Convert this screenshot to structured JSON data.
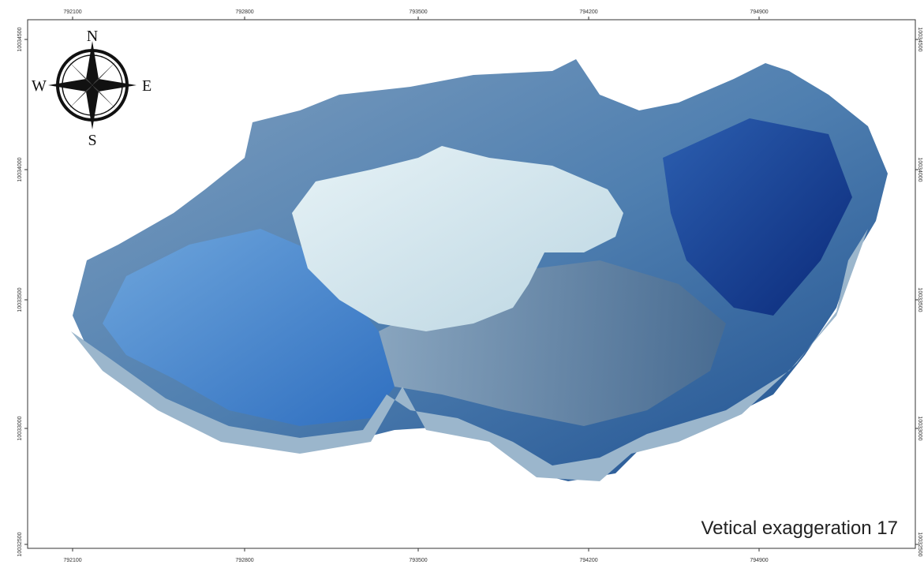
{
  "frame": {
    "top_labels": [
      792100,
      792800,
      793500,
      794200,
      794900
    ],
    "bottom_labels": [
      792100,
      792800,
      793500,
      794200,
      794900
    ],
    "left_labels": [
      10034500,
      10034000,
      10033500,
      10033000,
      10032500
    ],
    "right_labels": [
      10034500,
      10034000,
      10033500,
      10033000,
      10032500
    ]
  },
  "compass": {
    "north": "N",
    "south": "S",
    "east": "E",
    "west": "W"
  },
  "caption": "Vetical exaggeration 17"
}
